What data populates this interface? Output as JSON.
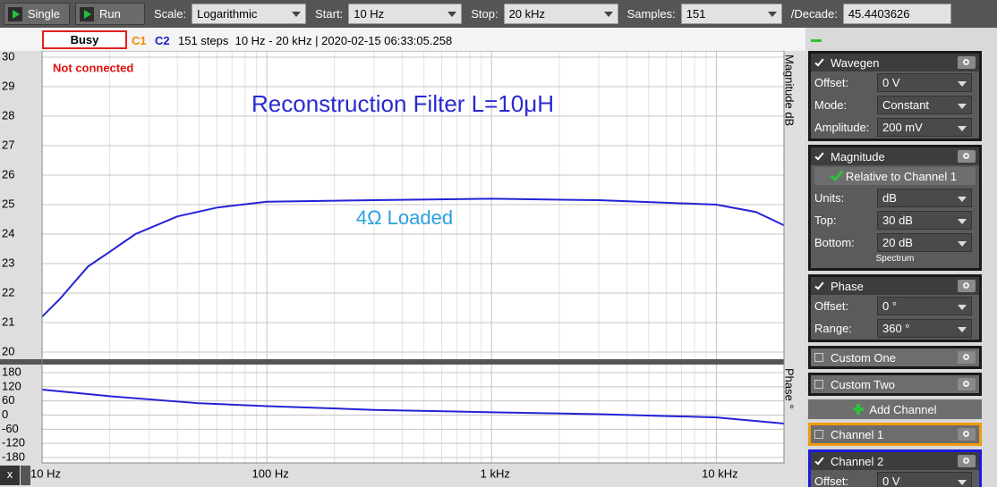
{
  "toolbar": {
    "buttons": [
      "Single",
      "Run"
    ],
    "fields": [
      {
        "label": "Scale:",
        "value": "Logarithmic",
        "dropdown": true
      },
      {
        "label": "Start:",
        "value": "10 Hz",
        "dropdown": true
      },
      {
        "label": "Stop:",
        "value": "20 kHz",
        "dropdown": true
      },
      {
        "label": "Samples:",
        "value": "151",
        "dropdown": true
      },
      {
        "label": "/Decade:",
        "value": "45.4403626",
        "dropdown": false
      }
    ]
  },
  "status": {
    "state": "Busy",
    "channels": [
      {
        "name": "C1",
        "color": "#f08a00"
      },
      {
        "name": "C2",
        "color": "#1c1cd0"
      }
    ],
    "info": "151 steps  10 Hz - 20 kHz | 2020-02-15 06:33:05.258",
    "connection": "Not connected"
  },
  "chart_data": [
    {
      "type": "line",
      "log_x": true,
      "grid": true,
      "x": [
        10,
        12,
        16,
        20,
        26,
        30,
        40,
        60,
        100,
        300,
        1000,
        3000,
        10000,
        15000,
        20000
      ],
      "series": [
        {
          "color": "#2323d6",
          "values": [
            21.2,
            21.8,
            22.9,
            23.4,
            24.0,
            24.2,
            24.6,
            24.9,
            25.1,
            25.15,
            25.2,
            25.15,
            25.0,
            24.75,
            24.3
          ]
        }
      ],
      "xlim": [
        10,
        20000
      ],
      "xticks": [
        10,
        100,
        1000,
        10000
      ],
      "ylim": [
        20,
        30
      ],
      "yticks": [
        20,
        21,
        22,
        23,
        24,
        25,
        26,
        27,
        28,
        29,
        30
      ],
      "ylabel": "Magnitude dB",
      "annotations": [
        {
          "text": "Reconstruction Filter L=10μH",
          "color": "#2a2ad0"
        },
        {
          "text": "4Ω Loaded",
          "color": "#2aa0e0"
        }
      ]
    },
    {
      "type": "line",
      "log_x": true,
      "grid": true,
      "x": [
        10,
        20,
        50,
        100,
        300,
        1000,
        3000,
        10000,
        20000
      ],
      "series": [
        {
          "color": "#2323d6",
          "values": [
            108,
            80,
            50,
            38,
            22,
            12,
            4,
            -10,
            -36
          ]
        }
      ],
      "xlim": [
        10,
        20000
      ],
      "xticks": [
        {
          "value": 10,
          "label": "10 Hz"
        },
        {
          "value": 100,
          "label": "100 Hz"
        },
        {
          "value": 1000,
          "label": "1 kHz"
        },
        {
          "value": 10000,
          "label": "10 kHz"
        }
      ],
      "ylim": [
        -180,
        180
      ],
      "yticks": [
        -180,
        -120,
        -60,
        0,
        60,
        120,
        180
      ],
      "ylabel": "Phase °"
    }
  ],
  "sidebar": {
    "panels_top": [
      {
        "title": "Wavegen",
        "checked": true,
        "rows": [
          [
            "Offset:",
            "0 V"
          ],
          [
            "Mode:",
            "Constant"
          ],
          [
            "Amplitude:",
            "200 mV"
          ]
        ]
      },
      {
        "title": "Magnitude",
        "checked": true,
        "button": "Relative to Channel 1",
        "rows": [
          [
            "Units:",
            "dB"
          ],
          [
            "Top:",
            "30 dB"
          ],
          [
            "Bottom:",
            "20 dB"
          ]
        ],
        "footer": "Spectrum"
      },
      {
        "title": "Phase",
        "checked": true,
        "rows": [
          [
            "Offset:",
            "0 °"
          ],
          [
            "Range:",
            "360 °"
          ]
        ]
      },
      {
        "title": "Custom One",
        "checked": false
      },
      {
        "title": "Custom Two",
        "checked": false
      }
    ],
    "add_channel": "Add Channel",
    "panels_bottom": [
      {
        "title": "Channel 1",
        "checked": false,
        "border": "#f09a10"
      },
      {
        "title": "Channel 2",
        "checked": true,
        "border": "#1a1ae0",
        "rows": [
          [
            "Offset:",
            "0 V"
          ]
        ]
      }
    ]
  },
  "close_button": "x"
}
